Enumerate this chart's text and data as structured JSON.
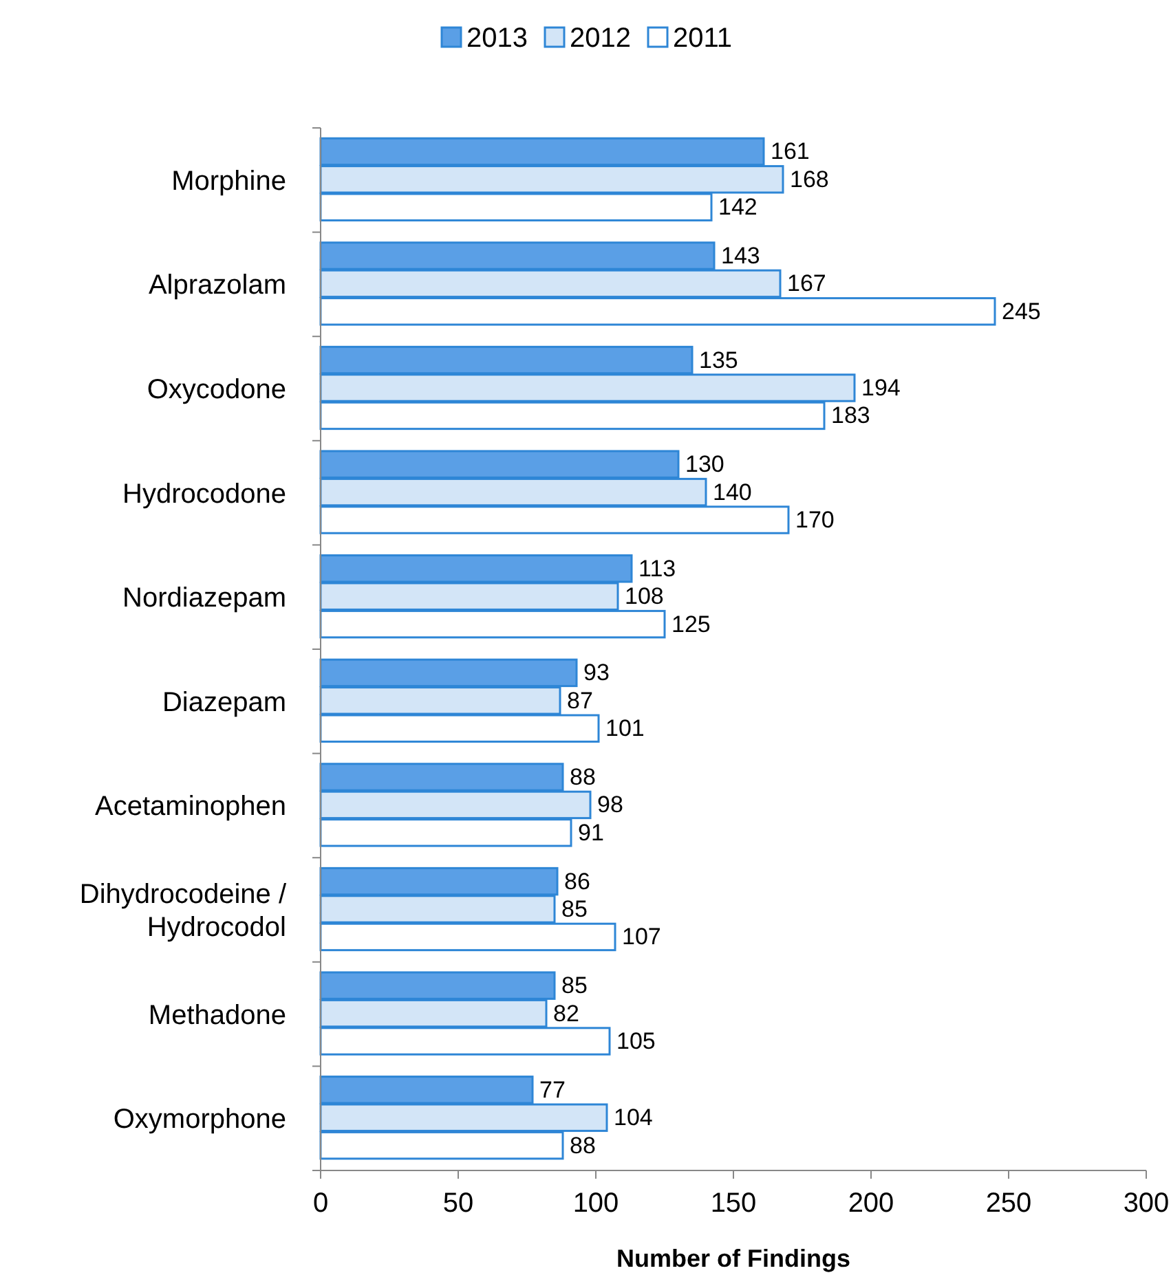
{
  "chart_data": {
    "type": "bar",
    "orientation": "horizontal",
    "xlabel": "Number of Findings",
    "categories": [
      "Morphine",
      "Alprazolam",
      "Oxycodone",
      "Hydrocodone",
      "Nordiazepam",
      "Diazepam",
      "Acetaminophen",
      "Dihydrocodeine / Hydrocodol",
      "Methadone",
      "Oxymorphone"
    ],
    "series": [
      {
        "name": "2013",
        "color": "#5a9fe6",
        "values": [
          161,
          143,
          135,
          130,
          113,
          93,
          88,
          86,
          85,
          77
        ]
      },
      {
        "name": "2012",
        "color": "#d3e5f7",
        "values": [
          168,
          167,
          194,
          140,
          108,
          87,
          98,
          85,
          82,
          104
        ]
      },
      {
        "name": "2011",
        "color": "#ffffff",
        "values": [
          142,
          245,
          183,
          170,
          125,
          101,
          91,
          107,
          105,
          88
        ]
      }
    ],
    "xlim": [
      0,
      300
    ],
    "xticks": [
      0,
      50,
      100,
      150,
      200,
      250,
      300
    ],
    "data_labels": true,
    "legend": "top",
    "grid": false
  }
}
